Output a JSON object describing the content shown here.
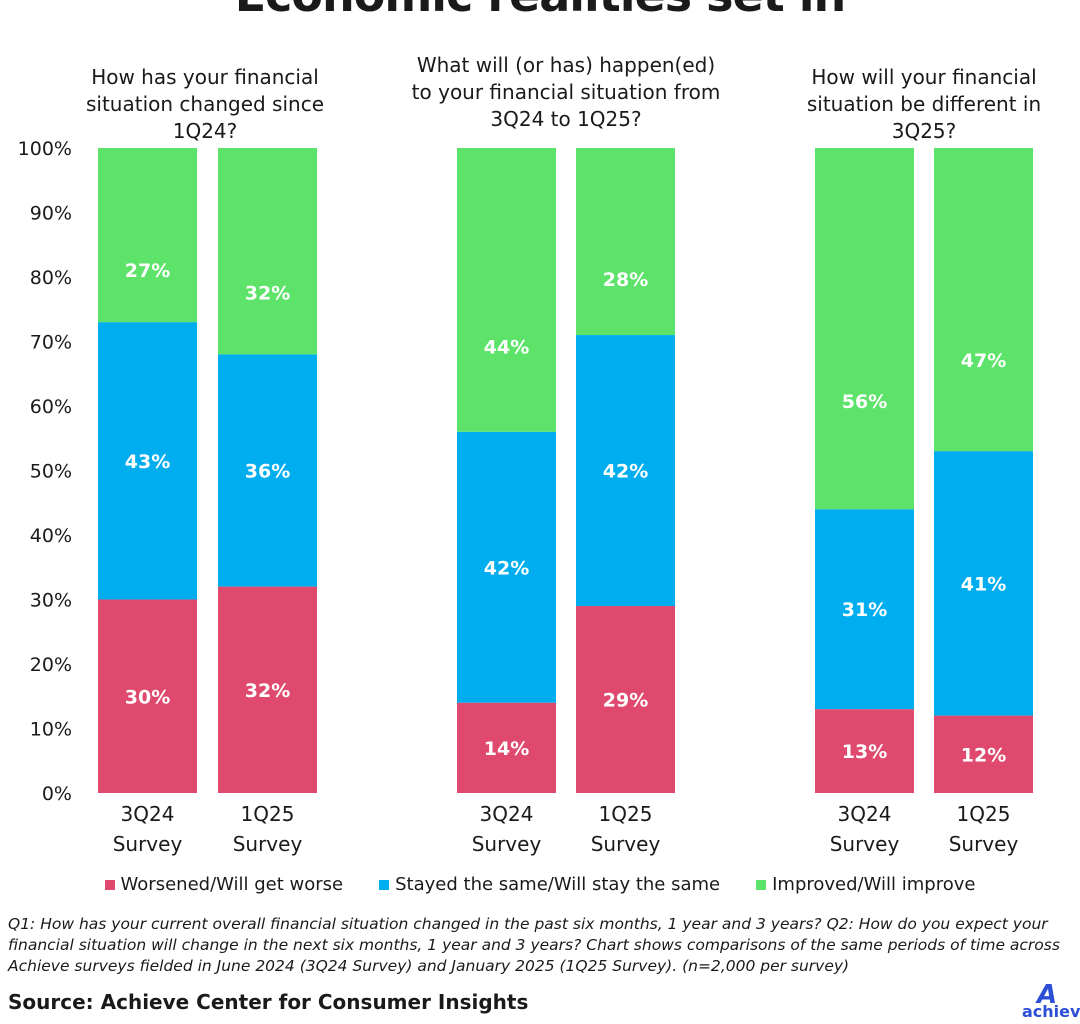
{
  "title": "Economic realities set in",
  "chart_data": {
    "type": "stacked-bar",
    "ylim": [
      0,
      100
    ],
    "yticks": [
      "0%",
      "10%",
      "20%",
      "30%",
      "40%",
      "50%",
      "60%",
      "70%",
      "80%",
      "90%",
      "100%"
    ],
    "groups": [
      {
        "question": "How has your financial situation changed since 1Q24?",
        "bars": [
          {
            "label": [
              "3Q24",
              "Survey"
            ],
            "values": [
              30,
              43,
              27
            ]
          },
          {
            "label": [
              "1Q25",
              "Survey"
            ],
            "values": [
              32,
              36,
              32
            ]
          }
        ]
      },
      {
        "question": "What will (or has) happen(ed) to your financial situation from 3Q24 to 1Q25?",
        "bars": [
          {
            "label": [
              "3Q24",
              "Survey"
            ],
            "values": [
              14,
              42,
              44
            ]
          },
          {
            "label": [
              "1Q25",
              "Survey"
            ],
            "values": [
              29,
              42,
              28
            ]
          }
        ]
      },
      {
        "question": "How will your financial situation be different in 3Q25?",
        "bars": [
          {
            "label": [
              "3Q24",
              "Survey"
            ],
            "values": [
              13,
              31,
              56
            ]
          },
          {
            "label": [
              "1Q25",
              "Survey"
            ],
            "values": [
              12,
              41,
              47
            ]
          }
        ]
      }
    ],
    "series": [
      {
        "name": "Worsened/Will get worse",
        "color": "#e0496e"
      },
      {
        "name": "Stayed the same/Will stay the same",
        "color": "#00aeef"
      },
      {
        "name": "Improved/Will improve",
        "color": "#5ee36a"
      }
    ],
    "grid": false,
    "legend": "bottom"
  },
  "footnote": "Q1: How has your current overall financial situation changed in the past six months, 1 year and 3 years? Q2: How do you expect your financial situation will change in the next six months, 1 year and 3 years? Chart shows comparisons of the same periods of time across Achieve surveys fielded in June 2024 (3Q24 Survey) and January 2025 (1Q25 Survey). (n=2,000 per survey)",
  "source": "Source: Achieve Center for Consumer Insights",
  "logo_text": "achieve"
}
